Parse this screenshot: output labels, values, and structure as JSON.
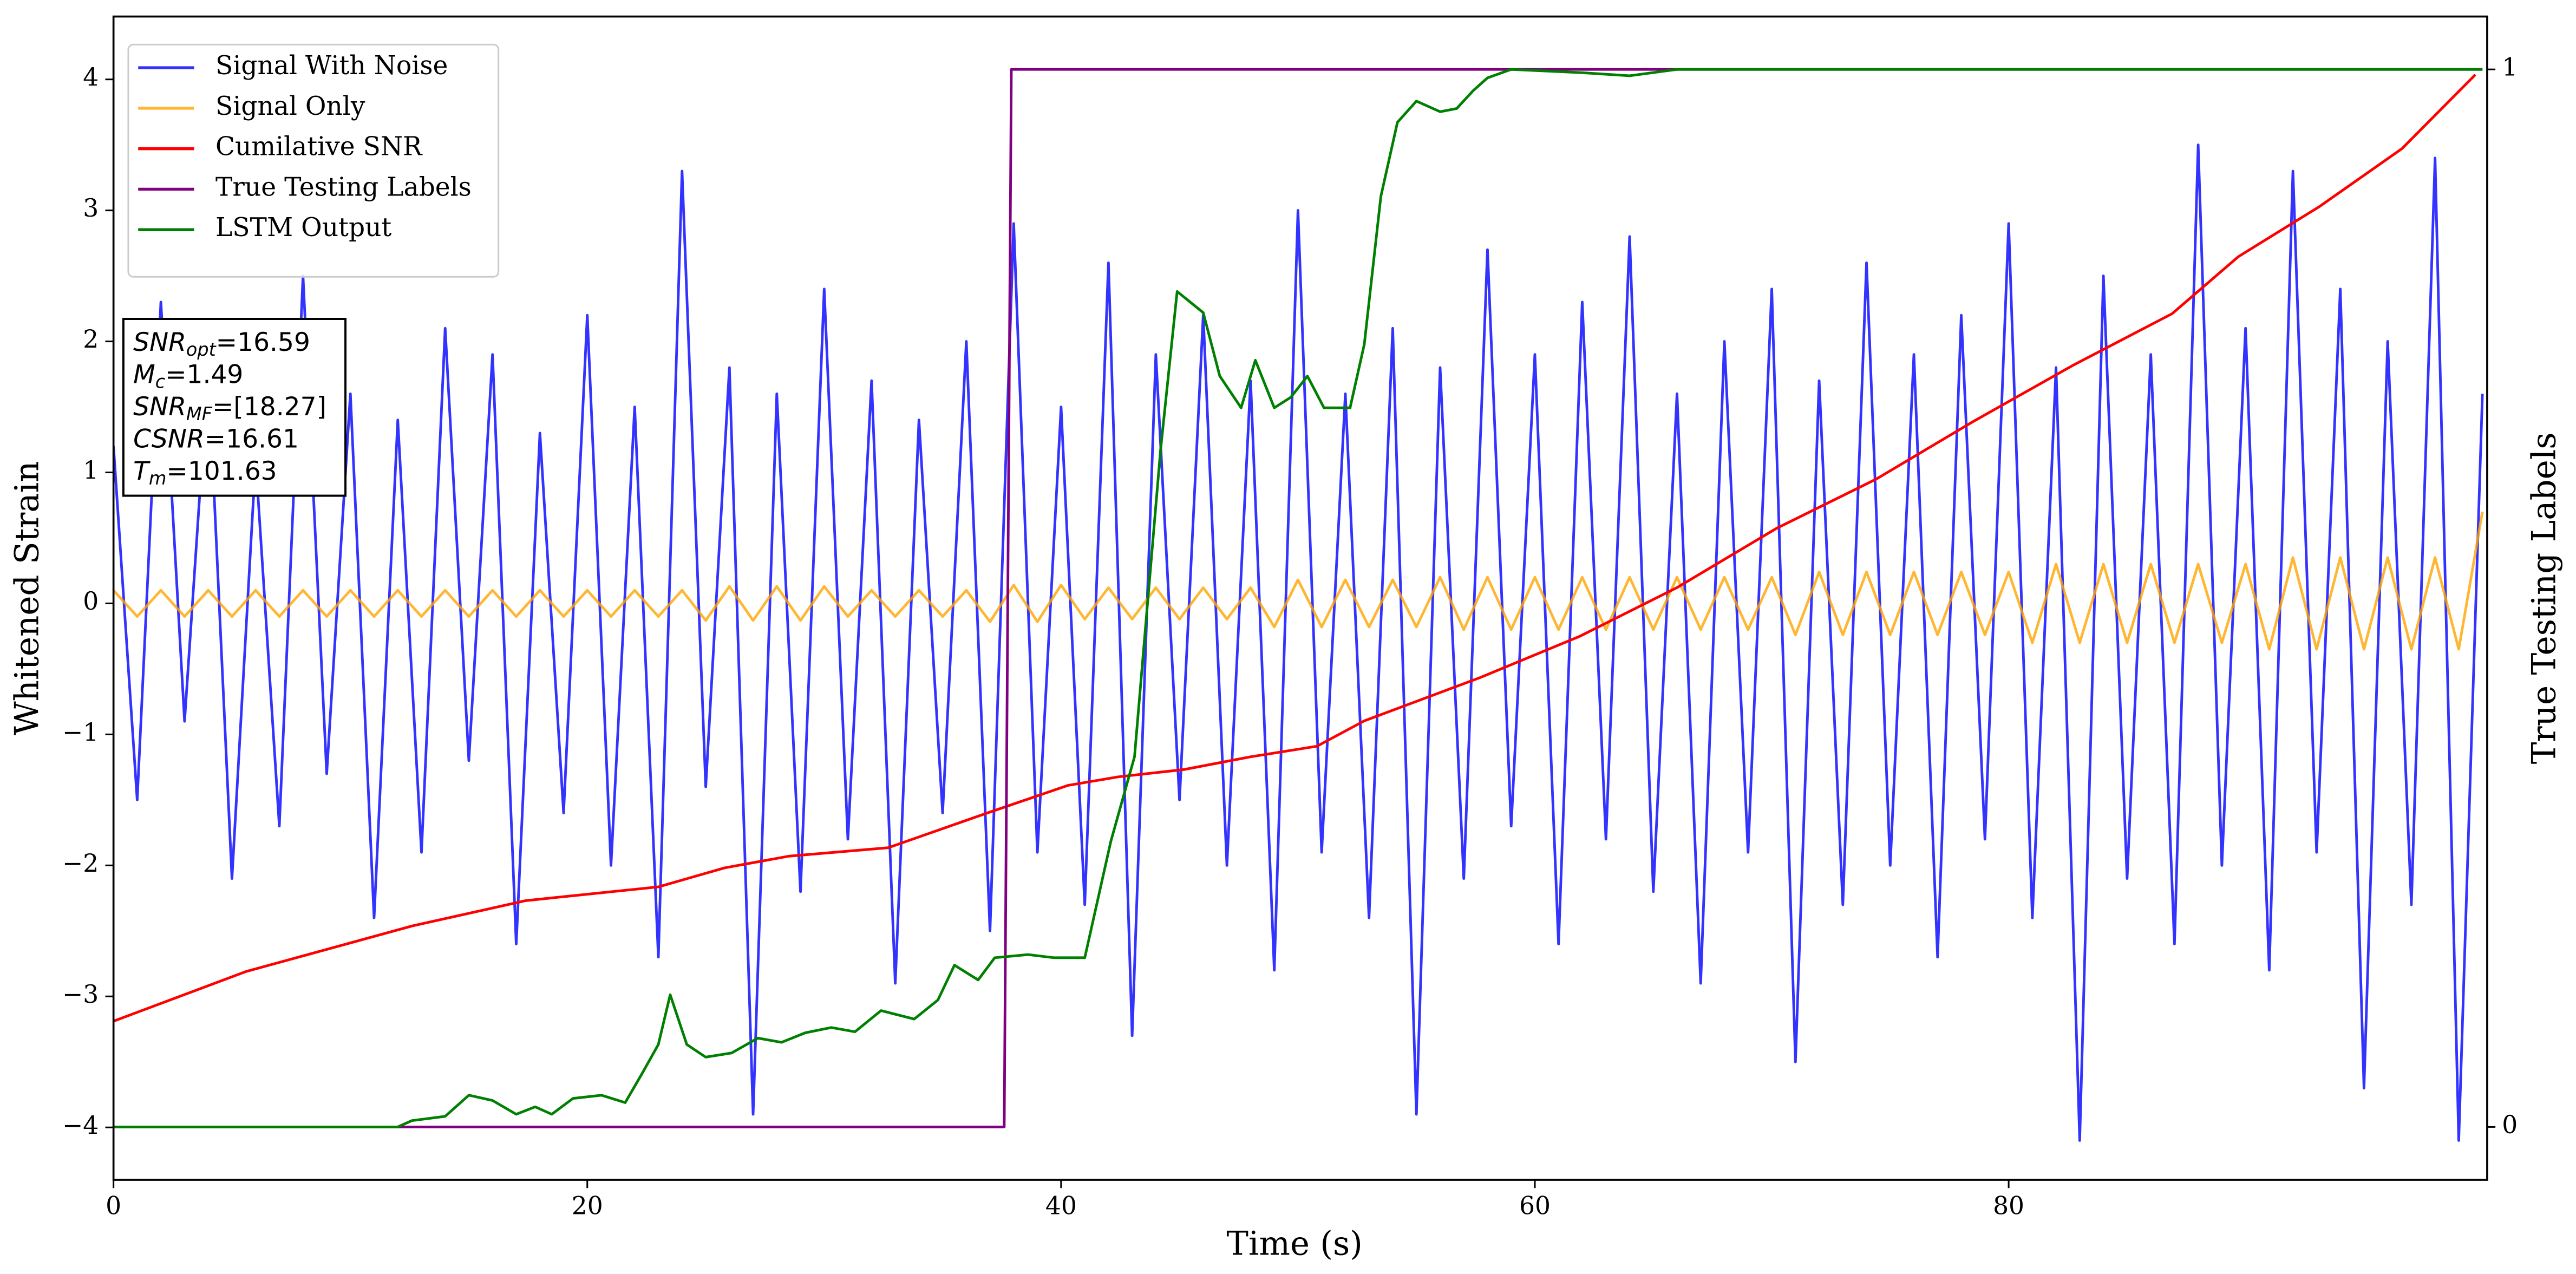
{
  "chart_data": {
    "type": "line",
    "xlabel": "Time (s)",
    "ylabel": "Whitened Strain",
    "y2label": "True Testing Labels",
    "xlim": [
      0,
      100.2
    ],
    "ylim": [
      -4.4,
      4.48
    ],
    "y2lim": [
      -0.05,
      1.05
    ],
    "xticks": [
      0,
      20,
      40,
      60,
      80
    ],
    "yticks": [
      {
        "value": -4,
        "label": "−4"
      },
      {
        "value": -3,
        "label": "−3"
      },
      {
        "value": -2,
        "label": "−2"
      },
      {
        "value": -1,
        "label": "−1"
      },
      0,
      1,
      2,
      3,
      4
    ],
    "y2ticks": [
      0,
      1
    ],
    "legend": "upper left",
    "series": [
      {
        "name": "Signal With Noise",
        "color": "blue",
        "alpha": 0.8,
        "x": [
          0,
          1,
          2,
          3,
          4,
          5,
          6,
          7,
          8,
          9,
          10,
          11,
          12,
          13,
          14,
          15,
          16,
          17,
          18,
          19,
          20,
          21,
          22,
          23,
          24,
          25,
          26,
          27,
          28,
          29,
          30,
          31,
          32,
          33,
          34,
          35,
          36,
          37,
          38,
          39,
          40,
          41,
          42,
          43,
          44,
          45,
          46,
          47,
          48,
          49,
          50,
          51,
          52,
          53,
          54,
          55,
          56,
          57,
          58,
          59,
          60,
          61,
          62,
          63,
          64,
          65,
          66,
          67,
          68,
          69,
          70,
          71,
          72,
          73,
          74,
          75,
          76,
          77,
          78,
          79,
          80,
          81,
          82,
          83,
          84,
          85,
          86,
          87,
          88,
          89,
          90,
          91,
          92,
          93,
          94,
          95,
          96,
          97,
          98,
          99,
          100
        ],
        "values": [
          1.2,
          -1.5,
          2.3,
          -0.9,
          1.8,
          -2.1,
          1.1,
          -1.7,
          2.5,
          -1.3,
          1.6,
          -2.4,
          1.4,
          -1.9,
          2.1,
          -1.2,
          1.9,
          -2.6,
          1.3,
          -1.6,
          2.2,
          -2.0,
          1.5,
          -2.7,
          3.3,
          -1.4,
          1.8,
          -3.9,
          1.6,
          -2.2,
          2.4,
          -1.8,
          1.7,
          -2.9,
          1.4,
          -1.6,
          2.0,
          -2.5,
          2.9,
          -1.9,
          1.5,
          -2.3,
          2.6,
          -3.3,
          1.9,
          -1.5,
          2.2,
          -2.0,
          1.7,
          -2.8,
          3.0,
          -1.9,
          1.6,
          -2.4,
          2.1,
          -3.9,
          1.8,
          -2.1,
          2.7,
          -1.7,
          1.9,
          -2.6,
          2.3,
          -1.8,
          2.8,
          -2.2,
          1.6,
          -2.9,
          2.0,
          -1.9,
          2.4,
          -3.5,
          1.7,
          -2.3,
          2.6,
          -2.0,
          1.9,
          -2.7,
          2.2,
          -1.8,
          2.9,
          -2.4,
          1.8,
          -4.1,
          2.5,
          -2.1,
          1.9,
          -2.6,
          3.5,
          -2.0,
          2.1,
          -2.8,
          3.3,
          -1.9,
          2.4,
          -3.7,
          2.0,
          -2.3,
          3.4,
          -4.1,
          1.6
        ]
      },
      {
        "name": "Signal Only",
        "color": "orange",
        "alpha": 0.8,
        "x": [
          0,
          1,
          2,
          3,
          4,
          5,
          6,
          7,
          8,
          9,
          10,
          11,
          12,
          13,
          14,
          15,
          16,
          17,
          18,
          19,
          20,
          21,
          22,
          23,
          24,
          25,
          26,
          27,
          28,
          29,
          30,
          31,
          32,
          33,
          34,
          35,
          36,
          37,
          38,
          39,
          40,
          41,
          42,
          43,
          44,
          45,
          46,
          47,
          48,
          49,
          50,
          51,
          52,
          53,
          54,
          55,
          56,
          57,
          58,
          59,
          60,
          61,
          62,
          63,
          64,
          65,
          66,
          67,
          68,
          69,
          70,
          71,
          72,
          73,
          74,
          75,
          76,
          77,
          78,
          79,
          80,
          81,
          82,
          83,
          84,
          85,
          86,
          87,
          88,
          89,
          90,
          91,
          92,
          93,
          94,
          95,
          96,
          97,
          98,
          99,
          100
        ],
        "values": [
          0.1,
          -0.1,
          0.1,
          -0.1,
          0.1,
          -0.1,
          0.1,
          -0.1,
          0.1,
          -0.1,
          0.1,
          -0.1,
          0.1,
          -0.1,
          0.1,
          -0.1,
          0.1,
          -0.1,
          0.1,
          -0.1,
          0.1,
          -0.1,
          0.1,
          -0.1,
          0.1,
          -0.13,
          0.13,
          -0.13,
          0.13,
          -0.13,
          0.13,
          -0.1,
          0.1,
          -0.1,
          0.1,
          -0.1,
          0.1,
          -0.14,
          0.14,
          -0.14,
          0.14,
          -0.12,
          0.12,
          -0.12,
          0.12,
          -0.12,
          0.12,
          -0.12,
          0.12,
          -0.18,
          0.18,
          -0.18,
          0.18,
          -0.18,
          0.18,
          -0.18,
          0.2,
          -0.2,
          0.2,
          -0.2,
          0.2,
          -0.2,
          0.2,
          -0.2,
          0.2,
          -0.2,
          0.2,
          -0.2,
          0.2,
          -0.2,
          0.2,
          -0.24,
          0.24,
          -0.24,
          0.24,
          -0.24,
          0.24,
          -0.24,
          0.24,
          -0.24,
          0.24,
          -0.3,
          0.3,
          -0.3,
          0.3,
          -0.3,
          0.3,
          -0.3,
          0.3,
          -0.3,
          0.3,
          -0.35,
          0.35,
          -0.35,
          0.35,
          -0.35,
          0.35,
          -0.35,
          0.35,
          -0.35,
          0.7
        ]
      },
      {
        "name": "Cumilative SNR",
        "color": "red",
        "axis": "y2",
        "x": [
          0,
          5.6,
          12.6,
          17.4,
          23,
          25.8,
          28.5,
          32.7,
          36.9,
          40.3,
          42.4,
          45.2,
          48,
          50.8,
          52.8,
          57.7,
          61.9,
          66,
          70.2,
          74.4,
          78.5,
          82.7,
          86.9,
          89.7,
          93.1,
          96.6,
          99.7
        ],
        "values": [
          0.1,
          0.147,
          0.19,
          0.214,
          0.227,
          0.245,
          0.256,
          0.264,
          0.297,
          0.323,
          0.331,
          0.338,
          0.35,
          0.36,
          0.384,
          0.425,
          0.464,
          0.51,
          0.566,
          0.6125,
          0.667,
          0.72,
          0.769,
          0.823,
          0.87,
          0.925,
          0.995
        ]
      },
      {
        "name": "True Testing Labels",
        "color": "purple",
        "axis": "y2",
        "x": [
          0,
          37.6,
          37.9,
          100
        ],
        "values": [
          0,
          0,
          1,
          1
        ]
      },
      {
        "name": "LSTM Output",
        "color": "green",
        "axis": "y2",
        "x": [
          0,
          12,
          12.6,
          14,
          15,
          16,
          17,
          17.8,
          18.5,
          19.4,
          20.6,
          21.6,
          22.3,
          23,
          23.5,
          24.2,
          25,
          26.1,
          27.2,
          28.2,
          29.2,
          30.3,
          31.3,
          32.4,
          33.8,
          34.8,
          35.5,
          36.5,
          37.2,
          38.6,
          39.7,
          41,
          41.4,
          42.1,
          43.1,
          44.2,
          44.9,
          46,
          46.7,
          47.6,
          48.2,
          49,
          49.7,
          50.4,
          51.1,
          52.2,
          52.8,
          53.5,
          54.2,
          55,
          56,
          56.7,
          57.4,
          58,
          59,
          61.9,
          64,
          66,
          100
        ],
        "values": [
          0,
          0,
          0.006,
          0.01,
          0.03,
          0.025,
          0.012,
          0.019,
          0.012,
          0.027,
          0.03,
          0.023,
          0.05,
          0.078,
          0.125,
          0.078,
          0.066,
          0.07,
          0.084,
          0.08,
          0.089,
          0.094,
          0.09,
          0.11,
          0.102,
          0.12,
          0.153,
          0.139,
          0.16,
          0.163,
          0.16,
          0.16,
          0.2,
          0.27,
          0.35,
          0.64,
          0.79,
          0.77,
          0.71,
          0.68,
          0.725,
          0.68,
          0.69,
          0.71,
          0.68,
          0.68,
          0.74,
          0.88,
          0.95,
          0.97,
          0.96,
          0.963,
          0.98,
          0.992,
          1,
          0.997,
          0.994,
          1,
          1
        ]
      }
    ],
    "annotation": [
      {
        "text": "SNR",
        "sub": "opt",
        "value": "=16.59"
      },
      {
        "text": "M",
        "sub": "c",
        "value": "=1.49"
      },
      {
        "text": "SNR",
        "sub": "MF",
        "value": "=[18.27]"
      },
      {
        "text": "CSNR",
        "value": "=16.61"
      },
      {
        "text": "T",
        "sub": "m",
        "value": "=101.63"
      }
    ]
  }
}
